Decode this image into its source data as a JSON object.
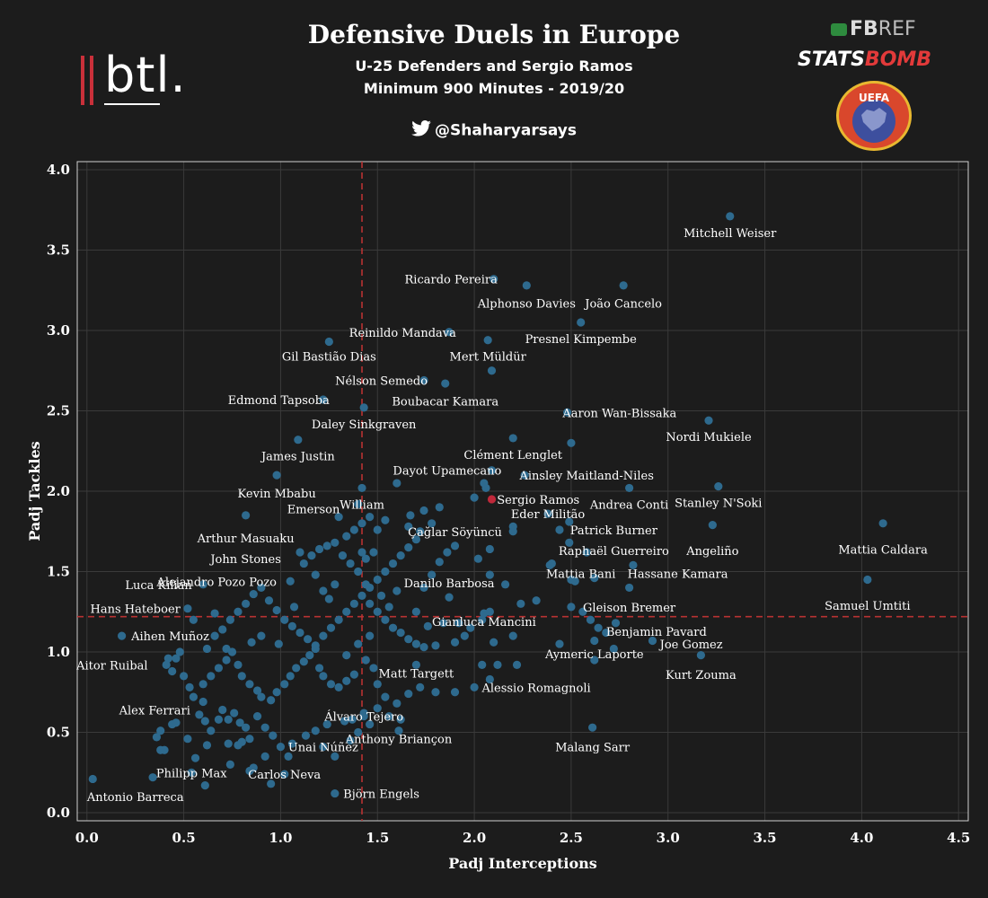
{
  "header": {
    "title": "Defensive Duels in Europe",
    "subtitle1": "U-25 Defenders and Sergio Ramos",
    "subtitle2": "Minimum 900 Minutes - 2019/20",
    "handle": "@Shaharyarsays",
    "btl_logo": "btl.",
    "fbref_fb": "FB",
    "fbref_ref": "REF",
    "statsbomb_stats": "STATS",
    "statsbomb_bomb": "BOMB",
    "uefa_text": "UEFA"
  },
  "colors": {
    "background": "#1c1c1c",
    "point": "#2e6a8e",
    "highlight": "#c0283a",
    "refline": "#b83232",
    "grid": "#3a3a3a"
  },
  "chart_data": {
    "type": "scatter",
    "xlabel": "Padj Interceptions",
    "ylabel": "Padj Tackles",
    "xlim": [
      -0.05,
      4.55
    ],
    "ylim": [
      -0.05,
      4.05
    ],
    "xticks": [
      "0.0",
      "0.5",
      "1.0",
      "1.5",
      "2.0",
      "2.5",
      "3.0",
      "3.5",
      "4.0",
      "4.5"
    ],
    "yticks": [
      "0.0",
      "0.5",
      "1.0",
      "1.5",
      "2.0",
      "2.5",
      "3.0",
      "3.5",
      "4.0"
    ],
    "grid": true,
    "ref_x": 1.42,
    "ref_y": 1.22,
    "highlight": "Sergio Ramos",
    "labeled_points": [
      {
        "name": "Mitchell Weiser",
        "x": 3.32,
        "y": 3.71,
        "lx": 3.32,
        "ly": 3.61
      },
      {
        "name": "Ricardo Pereira",
        "x": 2.1,
        "y": 3.32,
        "lx": 1.88,
        "ly": 3.32
      },
      {
        "name": "Alphonso Davies",
        "x": 2.27,
        "y": 3.28,
        "lx": 2.27,
        "ly": 3.17
      },
      {
        "name": "João Cancelo",
        "x": 2.77,
        "y": 3.28,
        "lx": 2.77,
        "ly": 3.17
      },
      {
        "name": "Reinildo Mandava",
        "x": 1.87,
        "y": 2.99,
        "lx": 1.63,
        "ly": 2.99
      },
      {
        "name": "Presnel Kimpembe",
        "x": 2.55,
        "y": 3.05,
        "lx": 2.55,
        "ly": 2.95
      },
      {
        "name": "Gil Bastião Dias",
        "x": 1.25,
        "y": 2.93,
        "lx": 1.25,
        "ly": 2.84
      },
      {
        "name": "Mert Müldür",
        "x": 2.07,
        "y": 2.94,
        "lx": 2.07,
        "ly": 2.84
      },
      {
        "name": "Nélson Semedo",
        "x": 1.74,
        "y": 2.69,
        "lx": 1.52,
        "ly": 2.69
      },
      {
        "name": "Boubacar Kamara",
        "x": 1.85,
        "y": 2.67,
        "lx": 1.85,
        "ly": 2.56
      },
      {
        "name": "Edmond Tapsoba",
        "x": 1.22,
        "y": 2.57,
        "lx": 0.99,
        "ly": 2.57
      },
      {
        "name": "Daley Sinkgraven",
        "x": 1.43,
        "y": 2.52,
        "lx": 1.43,
        "ly": 2.42
      },
      {
        "name": "Aaron Wan-Bissaka",
        "x": 2.48,
        "y": 2.49,
        "lx": 2.75,
        "ly": 2.49
      },
      {
        "name": "Nordi Mukiele",
        "x": 3.21,
        "y": 2.44,
        "lx": 3.21,
        "ly": 2.34
      },
      {
        "name": "Clément Lenglet",
        "x": 2.2,
        "y": 2.33,
        "lx": 2.2,
        "ly": 2.23
      },
      {
        "name": "James Justin",
        "x": 1.09,
        "y": 2.32,
        "lx": 1.09,
        "ly": 2.22
      },
      {
        "name": "Dayot Upamecano",
        "x": 2.09,
        "y": 2.13,
        "lx": 1.86,
        "ly": 2.13
      },
      {
        "name": "Ainsley Maitland-Niles",
        "x": 2.26,
        "y": 2.1,
        "lx": 2.58,
        "ly": 2.1
      },
      {
        "name": "Kevin Mbabu",
        "x": 0.98,
        "y": 2.1,
        "lx": 0.98,
        "ly": 1.99
      },
      {
        "name": "William",
        "x": 1.42,
        "y": 2.02,
        "lx": 1.42,
        "ly": 1.92
      },
      {
        "name": "Andrea Conti",
        "x": 2.8,
        "y": 2.02,
        "lx": 2.8,
        "ly": 1.92
      },
      {
        "name": "Stanley N'Soki",
        "x": 3.26,
        "y": 2.03,
        "lx": 3.26,
        "ly": 1.93
      },
      {
        "name": "Sergio Ramos",
        "x": 2.09,
        "y": 1.95,
        "lx": 2.33,
        "ly": 1.95
      },
      {
        "name": "Eder Militão",
        "x": 2.38,
        "y": 1.86,
        "lx": 2.38,
        "ly": 1.86
      },
      {
        "name": "Emerson",
        "x": 1.4,
        "y": 1.92,
        "lx": 1.17,
        "ly": 1.89
      },
      {
        "name": "Çağlar Söyüncü",
        "x": 1.67,
        "y": 1.85,
        "lx": 1.9,
        "ly": 1.75
      },
      {
        "name": "Patrick Burner",
        "x": 2.49,
        "y": 1.81,
        "lx": 2.72,
        "ly": 1.76
      },
      {
        "name": "Arthur Masuaku",
        "x": 0.82,
        "y": 1.85,
        "lx": 0.82,
        "ly": 1.71
      },
      {
        "name": "Angeliño",
        "x": 3.23,
        "y": 1.79,
        "lx": 3.23,
        "ly": 1.63
      },
      {
        "name": "Mattia Caldara",
        "x": 4.11,
        "y": 1.8,
        "lx": 4.11,
        "ly": 1.64
      },
      {
        "name": "Raphaël Guerreiro",
        "x": 2.49,
        "y": 1.68,
        "lx": 2.72,
        "ly": 1.63
      },
      {
        "name": "John Stones",
        "x": 1.1,
        "y": 1.62,
        "lx": 0.82,
        "ly": 1.58
      },
      {
        "name": "Mattia Bani",
        "x": 2.39,
        "y": 1.54,
        "lx": 2.55,
        "ly": 1.49
      },
      {
        "name": "Hassane Kamara",
        "x": 2.82,
        "y": 1.54,
        "lx": 3.05,
        "ly": 1.49
      },
      {
        "name": "Alejandro Pozo Pozo",
        "x": 1.05,
        "y": 1.44,
        "lx": 0.67,
        "ly": 1.44
      },
      {
        "name": "Luca Kilian",
        "x": 0.6,
        "y": 1.42,
        "lx": 0.37,
        "ly": 1.42
      },
      {
        "name": "Samuel Umtiti",
        "x": 4.03,
        "y": 1.45,
        "lx": 4.03,
        "ly": 1.29
      },
      {
        "name": "Danilo Barbosa",
        "x": 1.87,
        "y": 1.34,
        "lx": 1.87,
        "ly": 1.43
      },
      {
        "name": "Gleison Bremer",
        "x": 2.8,
        "y": 1.4,
        "lx": 2.8,
        "ly": 1.28
      },
      {
        "name": "Hans Hateboer",
        "x": 0.52,
        "y": 1.27,
        "lx": 0.25,
        "ly": 1.27
      },
      {
        "name": "Gianluca Mancini",
        "x": 2.05,
        "y": 1.24,
        "lx": 2.05,
        "ly": 1.19
      },
      {
        "name": "Benjamin Pavard",
        "x": 2.73,
        "y": 1.18,
        "lx": 2.94,
        "ly": 1.13
      },
      {
        "name": "Aihen Muñoz",
        "x": 0.18,
        "y": 1.1,
        "lx": 0.43,
        "ly": 1.1
      },
      {
        "name": "Joe Gomez",
        "x": 2.92,
        "y": 1.07,
        "lx": 3.12,
        "ly": 1.05
      },
      {
        "name": "Aymeric Laporte",
        "x": 2.62,
        "y": 1.07,
        "lx": 2.62,
        "ly": 0.99
      },
      {
        "name": "Aitor Ruibal",
        "x": 0.41,
        "y": 0.92,
        "lx": 0.13,
        "ly": 0.92
      },
      {
        "name": "Kurt Zouma",
        "x": 3.17,
        "y": 0.98,
        "lx": 3.17,
        "ly": 0.86
      },
      {
        "name": "Matt Targett",
        "x": 1.7,
        "y": 0.92,
        "lx": 1.7,
        "ly": 0.87
      },
      {
        "name": "Alessio Romagnoli",
        "x": 2.08,
        "y": 0.83,
        "lx": 2.32,
        "ly": 0.78
      },
      {
        "name": "Álvaro Tejero",
        "x": 1.43,
        "y": 0.6,
        "lx": 1.43,
        "ly": 0.6
      },
      {
        "name": "Alex Ferrari",
        "x": 0.6,
        "y": 0.69,
        "lx": 0.35,
        "ly": 0.64
      },
      {
        "name": "Anthony Briançon",
        "x": 1.61,
        "y": 0.51,
        "lx": 1.61,
        "ly": 0.46
      },
      {
        "name": "Unai Núñez",
        "x": 1.22,
        "y": 0.41,
        "lx": 1.22,
        "ly": 0.41
      },
      {
        "name": "Malang Sarr",
        "x": 2.61,
        "y": 0.53,
        "lx": 2.61,
        "ly": 0.41
      },
      {
        "name": "Philipp Max",
        "x": 0.54,
        "y": 0.25,
        "lx": 0.54,
        "ly": 0.25
      },
      {
        "name": "Carlos Neva",
        "x": 1.02,
        "y": 0.24,
        "lx": 1.02,
        "ly": 0.24
      },
      {
        "name": "Antonio Barreca",
        "x": 0.03,
        "y": 0.21,
        "lx": 0.25,
        "ly": 0.1
      },
      {
        "name": "Björn Engels",
        "x": 1.28,
        "y": 0.12,
        "lx": 1.52,
        "ly": 0.12
      }
    ],
    "other_points": [
      [
        0.34,
        0.22
      ],
      [
        0.61,
        0.17
      ],
      [
        0.84,
        0.26
      ],
      [
        0.36,
        0.47
      ],
      [
        0.38,
        0.51
      ],
      [
        0.44,
        0.55
      ],
      [
        0.46,
        0.56
      ],
      [
        0.52,
        0.46
      ],
      [
        0.58,
        0.61
      ],
      [
        0.61,
        0.57
      ],
      [
        0.64,
        0.51
      ],
      [
        0.68,
        0.58
      ],
      [
        0.7,
        0.64
      ],
      [
        0.73,
        0.58
      ],
      [
        0.76,
        0.62
      ],
      [
        0.79,
        0.56
      ],
      [
        0.82,
        0.53
      ],
      [
        0.84,
        0.46
      ],
      [
        0.8,
        0.44
      ],
      [
        0.78,
        0.42
      ],
      [
        0.73,
        0.43
      ],
      [
        0.62,
        0.42
      ],
      [
        0.4,
        0.39
      ],
      [
        0.38,
        0.39
      ],
      [
        0.88,
        0.6
      ],
      [
        0.92,
        0.53
      ],
      [
        0.96,
        0.48
      ],
      [
        1.0,
        0.41
      ],
      [
        1.06,
        0.43
      ],
      [
        1.13,
        0.48
      ],
      [
        1.18,
        0.51
      ],
      [
        1.24,
        0.55
      ],
      [
        1.33,
        0.57
      ],
      [
        1.37,
        0.58
      ],
      [
        1.43,
        0.62
      ],
      [
        0.44,
        0.88
      ],
      [
        0.46,
        0.96
      ],
      [
        0.5,
        0.85
      ],
      [
        0.53,
        0.78
      ],
      [
        0.55,
        0.72
      ],
      [
        0.6,
        0.8
      ],
      [
        0.64,
        0.85
      ],
      [
        0.68,
        0.9
      ],
      [
        0.72,
        0.95
      ],
      [
        0.75,
        1.0
      ],
      [
        0.78,
        0.92
      ],
      [
        0.8,
        0.85
      ],
      [
        0.84,
        0.8
      ],
      [
        0.88,
        0.76
      ],
      [
        0.9,
        0.72
      ],
      [
        0.95,
        0.7
      ],
      [
        0.98,
        0.75
      ],
      [
        1.02,
        0.8
      ],
      [
        1.05,
        0.85
      ],
      [
        1.08,
        0.9
      ],
      [
        1.12,
        0.94
      ],
      [
        1.15,
        0.98
      ],
      [
        1.18,
        1.02
      ],
      [
        1.2,
        0.9
      ],
      [
        1.22,
        0.85
      ],
      [
        1.26,
        0.8
      ],
      [
        1.3,
        0.78
      ],
      [
        1.34,
        0.82
      ],
      [
        1.38,
        0.86
      ],
      [
        0.62,
        1.02
      ],
      [
        0.66,
        1.1
      ],
      [
        0.7,
        1.14
      ],
      [
        0.74,
        1.2
      ],
      [
        0.78,
        1.25
      ],
      [
        0.82,
        1.3
      ],
      [
        0.86,
        1.36
      ],
      [
        0.9,
        1.4
      ],
      [
        0.94,
        1.32
      ],
      [
        0.98,
        1.26
      ],
      [
        1.02,
        1.2
      ],
      [
        1.06,
        1.16
      ],
      [
        1.1,
        1.12
      ],
      [
        1.14,
        1.08
      ],
      [
        1.18,
        1.04
      ],
      [
        1.22,
        1.1
      ],
      [
        1.26,
        1.15
      ],
      [
        1.3,
        1.2
      ],
      [
        1.34,
        1.25
      ],
      [
        1.38,
        1.3
      ],
      [
        1.42,
        1.35
      ],
      [
        1.46,
        1.4
      ],
      [
        1.5,
        1.45
      ],
      [
        1.54,
        1.5
      ],
      [
        1.58,
        1.55
      ],
      [
        1.62,
        1.6
      ],
      [
        1.66,
        1.65
      ],
      [
        1.7,
        1.7
      ],
      [
        1.12,
        1.55
      ],
      [
        1.16,
        1.6
      ],
      [
        1.2,
        1.64
      ],
      [
        1.24,
        1.66
      ],
      [
        1.28,
        1.68
      ],
      [
        1.32,
        1.6
      ],
      [
        1.36,
        1.55
      ],
      [
        1.4,
        1.5
      ],
      [
        1.44,
        1.58
      ],
      [
        1.48,
        1.62
      ],
      [
        1.5,
        1.76
      ],
      [
        1.46,
        1.84
      ],
      [
        1.42,
        1.8
      ],
      [
        1.38,
        1.76
      ],
      [
        1.34,
        1.72
      ],
      [
        1.3,
        1.84
      ],
      [
        1.42,
        1.62
      ],
      [
        1.46,
        1.3
      ],
      [
        1.5,
        1.25
      ],
      [
        1.54,
        1.2
      ],
      [
        1.58,
        1.15
      ],
      [
        1.62,
        1.12
      ],
      [
        1.66,
        1.08
      ],
      [
        1.7,
        1.05
      ],
      [
        1.74,
        1.03
      ],
      [
        1.8,
        1.04
      ],
      [
        1.9,
        1.06
      ],
      [
        1.95,
        1.1
      ],
      [
        1.98,
        1.15
      ],
      [
        2.04,
        1.2
      ],
      [
        2.08,
        1.25
      ],
      [
        1.74,
        1.4
      ],
      [
        1.78,
        1.48
      ],
      [
        1.82,
        1.56
      ],
      [
        1.86,
        1.62
      ],
      [
        1.9,
        1.66
      ],
      [
        2.02,
        1.58
      ],
      [
        2.08,
        1.48
      ],
      [
        2.16,
        1.42
      ],
      [
        2.24,
        1.3
      ],
      [
        2.32,
        1.32
      ],
      [
        2.5,
        1.28
      ],
      [
        2.56,
        1.25
      ],
      [
        2.6,
        1.2
      ],
      [
        2.68,
        1.12
      ],
      [
        2.5,
        1.45
      ],
      [
        2.52,
        1.44
      ],
      [
        2.62,
        1.46
      ],
      [
        2.4,
        1.55
      ],
      [
        2.58,
        1.62
      ],
      [
        2.2,
        1.78
      ],
      [
        2.2,
        1.75
      ],
      [
        2.05,
        2.05
      ],
      [
        2.0,
        1.96
      ],
      [
        2.44,
        1.76
      ],
      [
        2.5,
        2.3
      ],
      [
        1.82,
        1.9
      ],
      [
        1.78,
        1.8
      ],
      [
        1.74,
        1.88
      ],
      [
        1.6,
        2.05
      ],
      [
        1.54,
        1.82
      ],
      [
        1.66,
        1.78
      ],
      [
        2.08,
        1.64
      ],
      [
        1.72,
        1.75
      ],
      [
        2.06,
        2.02
      ],
      [
        2.09,
        2.75
      ],
      [
        1.46,
        1.1
      ],
      [
        1.44,
        0.95
      ],
      [
        1.48,
        0.9
      ],
      [
        1.5,
        0.8
      ],
      [
        1.54,
        0.72
      ],
      [
        1.6,
        0.68
      ],
      [
        1.66,
        0.74
      ],
      [
        1.72,
        0.78
      ],
      [
        1.8,
        0.75
      ],
      [
        1.9,
        0.75
      ],
      [
        2.0,
        0.78
      ],
      [
        2.12,
        0.92
      ],
      [
        2.22,
        0.92
      ],
      [
        2.04,
        0.92
      ],
      [
        2.62,
        0.95
      ],
      [
        1.36,
        0.45
      ],
      [
        1.4,
        0.5
      ],
      [
        1.46,
        0.55
      ],
      [
        1.28,
        0.35
      ],
      [
        1.5,
        0.65
      ],
      [
        1.56,
        0.6
      ],
      [
        1.62,
        0.58
      ],
      [
        1.04,
        0.35
      ],
      [
        0.92,
        0.35
      ],
      [
        0.86,
        0.28
      ],
      [
        0.74,
        0.3
      ],
      [
        0.56,
        0.34
      ],
      [
        0.95,
        0.18
      ],
      [
        0.99,
        1.05
      ],
      [
        1.07,
        1.28
      ],
      [
        1.25,
        1.33
      ],
      [
        1.34,
        0.98
      ],
      [
        1.4,
        1.05
      ],
      [
        0.9,
        1.1
      ],
      [
        0.85,
        1.06
      ],
      [
        0.72,
        1.02
      ],
      [
        0.66,
        1.24
      ],
      [
        0.55,
        1.2
      ],
      [
        0.48,
        1.0
      ],
      [
        0.42,
        0.96
      ],
      [
        1.18,
        1.48
      ],
      [
        1.22,
        1.38
      ],
      [
        1.28,
        1.42
      ],
      [
        1.44,
        1.42
      ],
      [
        1.52,
        1.35
      ],
      [
        1.56,
        1.28
      ],
      [
        1.6,
        1.38
      ],
      [
        1.7,
        1.25
      ],
      [
        1.76,
        1.16
      ],
      [
        1.84,
        1.18
      ],
      [
        1.92,
        1.18
      ],
      [
        2.1,
        1.06
      ],
      [
        2.2,
        1.1
      ],
      [
        2.44,
        1.05
      ],
      [
        2.64,
        1.15
      ],
      [
        2.72,
        1.02
      ]
    ]
  }
}
